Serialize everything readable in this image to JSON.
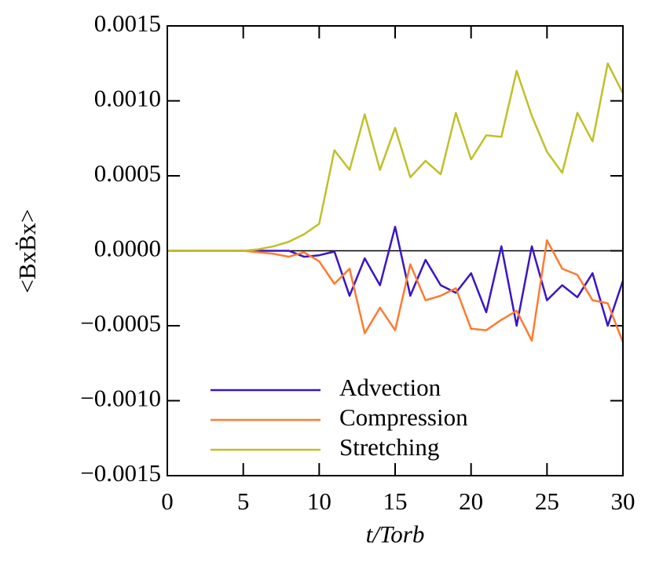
{
  "chart_data": {
    "type": "line",
    "x_label": "t/Torb",
    "y_label": "<BxḂx>",
    "x": [
      0,
      1,
      2,
      3,
      4,
      5,
      6,
      7,
      8,
      9,
      10,
      11,
      12,
      13,
      14,
      15,
      16,
      17,
      18,
      19,
      20,
      21,
      22,
      23,
      24,
      25,
      26,
      27,
      28,
      29,
      30
    ],
    "series": [
      {
        "name": "Advection",
        "color": "#3a14c8",
        "values": [
          0,
          0,
          0,
          0,
          0,
          0,
          0,
          0,
          0,
          -4e-05,
          -3e-05,
          -5e-06,
          -0.0003,
          -5e-05,
          -0.00023,
          0.00016,
          -0.0003,
          -6e-05,
          -0.00023,
          -0.00028,
          -0.00015,
          -0.00041,
          3e-05,
          -0.0005,
          3e-05,
          -0.00033,
          -0.00023,
          -0.00031,
          -0.00015,
          -0.0005,
          -0.0002
        ]
      },
      {
        "name": "Compression",
        "color": "#ff7a30",
        "values": [
          0,
          0,
          0,
          0,
          0,
          0,
          -1e-05,
          -2e-05,
          -4e-05,
          -1e-05,
          -7e-05,
          -0.00022,
          -0.00012,
          -0.00055,
          -0.00038,
          -0.00053,
          -9e-05,
          -0.00033,
          -0.0003,
          -0.00025,
          -0.00052,
          -0.00053,
          -0.00046,
          -0.0004,
          -0.0006,
          7e-05,
          -0.00012,
          -0.00016,
          -0.00033,
          -0.00035,
          -0.00061
        ]
      },
      {
        "name": "Stretching",
        "color": "#c0c02a",
        "values": [
          0,
          0,
          0,
          0,
          0,
          0,
          1e-05,
          3e-05,
          6e-05,
          0.00011,
          0.00018,
          0.00067,
          0.00054,
          0.00091,
          0.00054,
          0.00082,
          0.00049,
          0.0006,
          0.00051,
          0.00092,
          0.00061,
          0.00077,
          0.00076,
          0.0012,
          0.0009,
          0.00066,
          0.00052,
          0.00092,
          0.00073,
          0.00125,
          0.00105
        ]
      }
    ],
    "xlim": [
      0,
      30
    ],
    "xticks": [
      0,
      5,
      10,
      15,
      20,
      25,
      30
    ],
    "ylim": [
      -0.0015,
      0.0015
    ],
    "yticks": [
      {
        "value": -0.0015,
        "label": "−0.0015"
      },
      {
        "value": -0.001,
        "label": "−0.0010"
      },
      {
        "value": -0.0005,
        "label": "−0.0005"
      },
      {
        "value": 0,
        "label": "0.0000"
      },
      {
        "value": 0.0005,
        "label": "0.0005"
      },
      {
        "value": 0.001,
        "label": "0.0010"
      },
      {
        "value": 0.0015,
        "label": "0.0015"
      }
    ],
    "legend": "lower left"
  }
}
